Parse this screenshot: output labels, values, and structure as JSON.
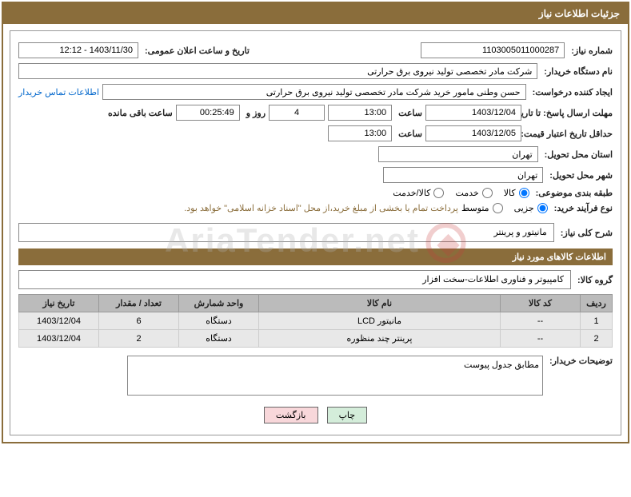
{
  "header": {
    "title": "جزئیات اطلاعات نیاز"
  },
  "fields": {
    "need_no_label": "شماره نیاز:",
    "need_no": "1103005011000287",
    "announce_label": "تاریخ و ساعت اعلان عمومی:",
    "announce": "1403/11/30 - 12:12",
    "buyer_label": "نام دستگاه خریدار:",
    "buyer": "شرکت مادر تخصصی تولید نیروی برق حرارتی",
    "requester_label": "ایجاد کننده درخواست:",
    "requester": "حسن وطنی مامور خرید شرکت مادر تخصصی تولید نیروی برق حرارتی",
    "contact_link": "اطلاعات تماس خریدار",
    "deadline_label": "مهلت ارسال پاسخ: تا تاریخ:",
    "deadline_date": "1403/12/04",
    "time_label": "ساعت",
    "deadline_time": "13:00",
    "days": "4",
    "days_label": "روز و",
    "countdown": "00:25:49",
    "remaining_label": "ساعت باقی مانده",
    "validity_label": "حداقل تاریخ اعتبار قیمت: تا تاریخ:",
    "validity_date": "1403/12/05",
    "validity_time": "13:00",
    "province_label": "استان محل تحویل:",
    "province": "تهران",
    "city_label": "شهر محل تحویل:",
    "city": "تهران",
    "category_label": "طبقه بندی موضوعی:",
    "cat_kala": "کالا",
    "cat_service": "خدمت",
    "cat_both": "کالا/خدمت",
    "process_label": "نوع فرآیند خرید:",
    "proc_small": "جزیی",
    "proc_medium": "متوسط",
    "process_note": "پرداخت تمام یا بخشی از مبلغ خرید،از محل \"اسناد خزانه اسلامی\" خواهد بود.",
    "desc_label": "شرح کلی نیاز:",
    "desc": "مانیتور و پرینتر"
  },
  "section2": {
    "title": "اطلاعات کالاهای مورد نیاز"
  },
  "group": {
    "label": "گروه کالا:",
    "value": "کامپیوتر و فناوری اطلاعات-سخت افزار"
  },
  "table": {
    "headers": [
      "ردیف",
      "کد کالا",
      "نام کالا",
      "واحد شمارش",
      "تعداد / مقدار",
      "تاریخ نیاز"
    ],
    "rows": [
      [
        "1",
        "--",
        "مانیتور LCD",
        "دستگاه",
        "6",
        "1403/12/04"
      ],
      [
        "2",
        "--",
        "پرینتر چند منظوره",
        "دستگاه",
        "2",
        "1403/12/04"
      ]
    ]
  },
  "notes": {
    "label": "توضیحات خریدار:",
    "value": "مطابق جدول پیوست"
  },
  "buttons": {
    "print": "چاپ",
    "back": "بازگشت"
  },
  "watermark": "AriaTender.net"
}
